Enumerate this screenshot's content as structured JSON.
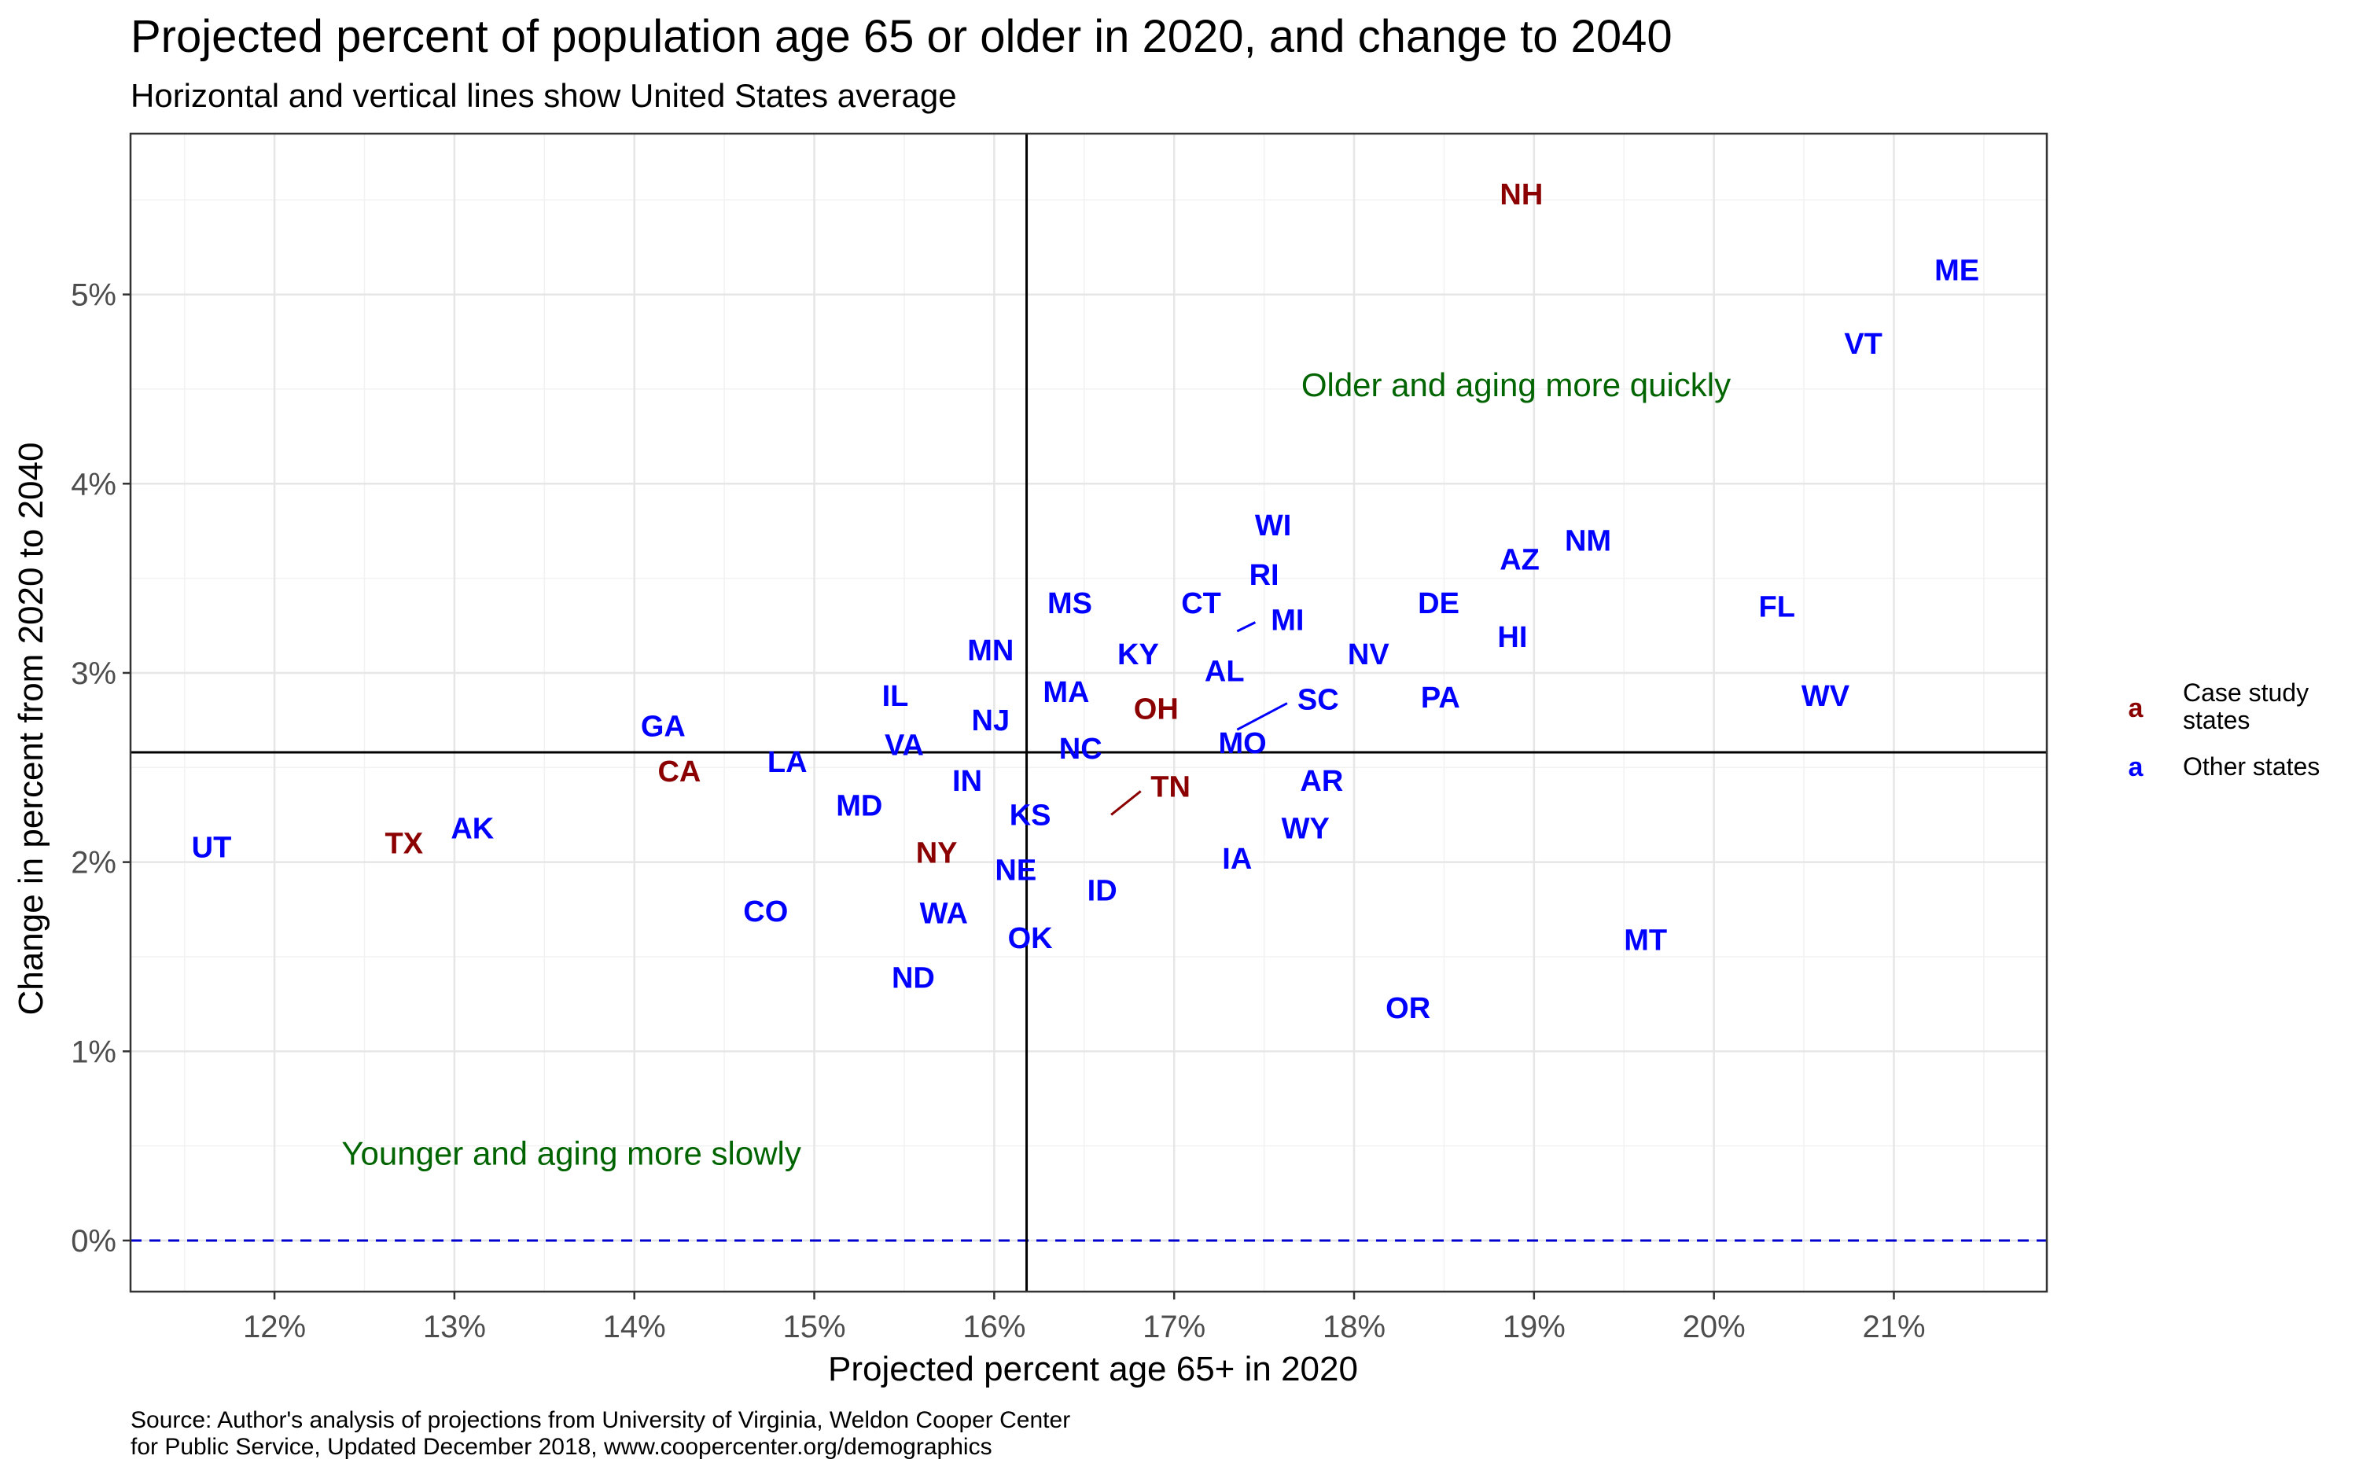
{
  "chart_data": {
    "type": "scatter",
    "title": "Projected percent of population age 65 or older in 2020, and change to 2040",
    "subtitle": "Horizontal and vertical lines show United States average",
    "xlabel": "Projected percent age 65+ in 2020",
    "ylabel": "Change in percent from 2020 to 2040",
    "xlim": [
      11.2,
      21.85
    ],
    "ylim": [
      -0.27,
      5.85
    ],
    "x_ticks": [
      12,
      13,
      14,
      15,
      16,
      17,
      18,
      19,
      20,
      21
    ],
    "x_tick_labels": [
      "12%",
      "13%",
      "14%",
      "15%",
      "16%",
      "17%",
      "18%",
      "19%",
      "20%",
      "21%"
    ],
    "y_ticks": [
      0,
      1,
      2,
      3,
      4,
      5
    ],
    "y_tick_labels": [
      "0%",
      "1%",
      "2%",
      "3%",
      "4%",
      "5%"
    ],
    "grid": true,
    "reference_lines": {
      "us_avg_x": 16.18,
      "us_avg_y": 2.58,
      "zero_line_y": 0
    },
    "colors": {
      "case_study": "#8B0000",
      "other": "#0000FF",
      "annotation": "#006400",
      "zero_line": "#0000CD"
    },
    "annotations": [
      {
        "text": "Older and aging more quickly",
        "x": 18.9,
        "y": 4.52
      },
      {
        "text": "Younger and aging more slowly",
        "x": 13.65,
        "y": 0.46
      }
    ],
    "legend": {
      "placement": "right",
      "items": [
        {
          "key": "a",
          "label_line1": "Case study",
          "label_line2": "states",
          "group": "case_study"
        },
        {
          "key": "a",
          "label_line1": "Other states",
          "label_line2": "",
          "group": "other"
        }
      ]
    },
    "points": [
      {
        "label": "NH",
        "x": 18.93,
        "y": 5.53,
        "group": "case_study"
      },
      {
        "label": "ME",
        "x": 21.35,
        "y": 5.13,
        "group": "other"
      },
      {
        "label": "VT",
        "x": 20.83,
        "y": 4.74,
        "group": "other"
      },
      {
        "label": "WI",
        "x": 17.55,
        "y": 3.78,
        "group": "other"
      },
      {
        "label": "NM",
        "x": 19.3,
        "y": 3.7,
        "group": "other"
      },
      {
        "label": "AZ",
        "x": 18.92,
        "y": 3.6,
        "group": "other"
      },
      {
        "label": "RI",
        "x": 17.5,
        "y": 3.52,
        "group": "other"
      },
      {
        "label": "MS",
        "x": 16.42,
        "y": 3.37,
        "group": "other"
      },
      {
        "label": "CT",
        "x": 17.15,
        "y": 3.37,
        "group": "other"
      },
      {
        "label": "DE",
        "x": 18.47,
        "y": 3.37,
        "group": "other"
      },
      {
        "label": "FL",
        "x": 20.35,
        "y": 3.35,
        "group": "other"
      },
      {
        "label": "MI",
        "x": 17.35,
        "y": 3.22,
        "group": "other",
        "leader": true,
        "label_x": 17.63,
        "label_y": 3.28
      },
      {
        "label": "HI",
        "x": 18.88,
        "y": 3.19,
        "group": "other"
      },
      {
        "label": "MN",
        "x": 15.98,
        "y": 3.12,
        "group": "other"
      },
      {
        "label": "NV",
        "x": 18.08,
        "y": 3.1,
        "group": "other"
      },
      {
        "label": "KY",
        "x": 16.8,
        "y": 3.1,
        "group": "other"
      },
      {
        "label": "AL",
        "x": 17.28,
        "y": 3.01,
        "group": "other"
      },
      {
        "label": "MA",
        "x": 16.4,
        "y": 2.9,
        "group": "other"
      },
      {
        "label": "IL",
        "x": 15.45,
        "y": 2.88,
        "group": "other"
      },
      {
        "label": "PA",
        "x": 18.48,
        "y": 2.87,
        "group": "other"
      },
      {
        "label": "WV",
        "x": 20.62,
        "y": 2.88,
        "group": "other"
      },
      {
        "label": "SC",
        "x": 17.35,
        "y": 2.7,
        "group": "other",
        "leader": true,
        "label_x": 17.8,
        "label_y": 2.86
      },
      {
        "label": "OH",
        "x": 16.9,
        "y": 2.81,
        "group": "case_study"
      },
      {
        "label": "NJ",
        "x": 15.98,
        "y": 2.75,
        "group": "other"
      },
      {
        "label": "GA",
        "x": 14.16,
        "y": 2.72,
        "group": "other"
      },
      {
        "label": "MO",
        "x": 17.38,
        "y": 2.63,
        "group": "other"
      },
      {
        "label": "VA",
        "x": 15.5,
        "y": 2.62,
        "group": "other"
      },
      {
        "label": "NC",
        "x": 16.48,
        "y": 2.6,
        "group": "other"
      },
      {
        "label": "LA",
        "x": 14.85,
        "y": 2.53,
        "group": "other"
      },
      {
        "label": "CA",
        "x": 14.25,
        "y": 2.48,
        "group": "case_study"
      },
      {
        "label": "AR",
        "x": 17.82,
        "y": 2.43,
        "group": "other"
      },
      {
        "label": "IN",
        "x": 15.85,
        "y": 2.43,
        "group": "other"
      },
      {
        "label": "MD",
        "x": 15.25,
        "y": 2.3,
        "group": "other"
      },
      {
        "label": "KS",
        "x": 16.2,
        "y": 2.25,
        "group": "other"
      },
      {
        "label": "TN",
        "x": 16.65,
        "y": 2.25,
        "group": "case_study",
        "leader": true,
        "label_x": 16.98,
        "label_y": 2.4
      },
      {
        "label": "WY",
        "x": 17.73,
        "y": 2.18,
        "group": "other"
      },
      {
        "label": "AK",
        "x": 13.1,
        "y": 2.18,
        "group": "other"
      },
      {
        "label": "UT",
        "x": 11.65,
        "y": 2.08,
        "group": "other"
      },
      {
        "label": "TX",
        "x": 12.72,
        "y": 2.1,
        "group": "case_study"
      },
      {
        "label": "NY",
        "x": 15.68,
        "y": 2.05,
        "group": "case_study"
      },
      {
        "label": "IA",
        "x": 17.35,
        "y": 2.02,
        "group": "other"
      },
      {
        "label": "NE",
        "x": 16.12,
        "y": 1.96,
        "group": "other"
      },
      {
        "label": "ID",
        "x": 16.6,
        "y": 1.85,
        "group": "other"
      },
      {
        "label": "CO",
        "x": 14.73,
        "y": 1.74,
        "group": "other"
      },
      {
        "label": "WA",
        "x": 15.72,
        "y": 1.73,
        "group": "other"
      },
      {
        "label": "OK",
        "x": 16.2,
        "y": 1.6,
        "group": "other"
      },
      {
        "label": "MT",
        "x": 19.62,
        "y": 1.59,
        "group": "other"
      },
      {
        "label": "ND",
        "x": 15.55,
        "y": 1.39,
        "group": "other"
      },
      {
        "label": "OR",
        "x": 18.3,
        "y": 1.23,
        "group": "other"
      }
    ],
    "caption_line1": "Source: Author's analysis of projections from University of Virginia, Weldon Cooper Center",
    "caption_line2": "for Public Service, Updated December 2018, www.coopercenter.org/demographics"
  }
}
